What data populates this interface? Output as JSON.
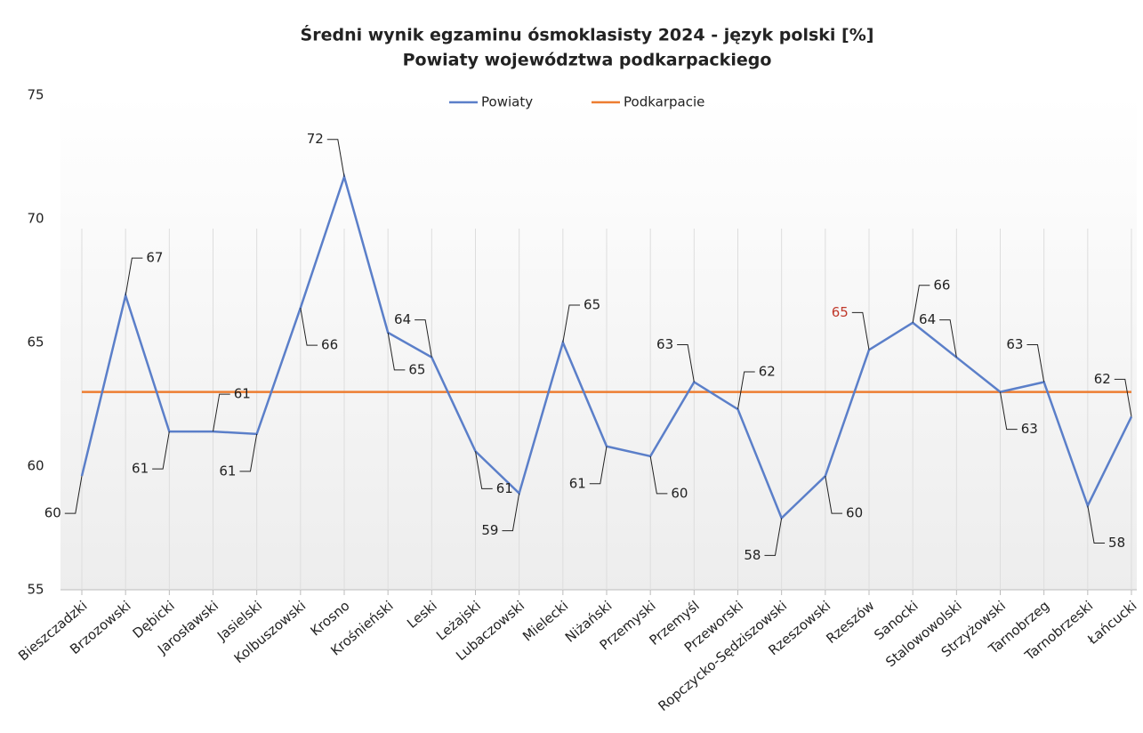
{
  "chart_data": {
    "type": "line",
    "title": "Średni wynik egzaminu ósmoklasisty 2024 - język polski [%]",
    "subtitle": "Powiaty województwa podkarpackiego",
    "categories": [
      "Bieszczadzki",
      "Brzozowski",
      "Dębicki",
      "Jarosławski",
      "Jasielski",
      "Kolbuszowski",
      "Krosno",
      "Krośnieński",
      "Leski",
      "Leżajski",
      "Lubaczowski",
      "Mielecki",
      "Niżański",
      "Przemyski",
      "Przemyśl",
      "Przeworski",
      "Ropczycko-Sędziszowski",
      "Rzeszowski",
      "Rzeszów",
      "Sanocki",
      "Stalowowolski",
      "Strzyżowski",
      "Tarnobrzeg",
      "Tarnobrzeski",
      "Łańcucki"
    ],
    "series": [
      {
        "name": "Powiaty",
        "color": "#5b7fc9",
        "values": [
          59.6,
          66.9,
          61.4,
          61.4,
          61.3,
          66.4,
          71.7,
          65.4,
          64.4,
          60.6,
          58.9,
          65.0,
          60.8,
          60.4,
          63.4,
          62.3,
          57.9,
          59.6,
          64.7,
          65.8,
          64.4,
          63.0,
          63.4,
          58.4,
          62.0
        ],
        "value_labels": [
          "60",
          "67",
          "61",
          "61",
          "61",
          "66",
          "72",
          "65",
          "64",
          "61",
          "59",
          "65",
          "61",
          "60",
          "63",
          "62",
          "58",
          "60",
          "65",
          "66",
          "64",
          "63",
          "63",
          "58",
          "62"
        ]
      },
      {
        "name": "Podkarpacie",
        "color": "#ed7d31",
        "values": [
          63,
          63,
          63,
          63,
          63,
          63,
          63,
          63,
          63,
          63,
          63,
          63,
          63,
          63,
          63,
          63,
          63,
          63,
          63,
          63,
          63,
          63,
          63,
          63,
          63
        ]
      }
    ],
    "highlight": {
      "index": 18,
      "color": "#c0392b"
    },
    "ylim": [
      55,
      75
    ],
    "yticks": [
      55,
      60,
      65,
      70,
      75
    ],
    "grid": true
  }
}
